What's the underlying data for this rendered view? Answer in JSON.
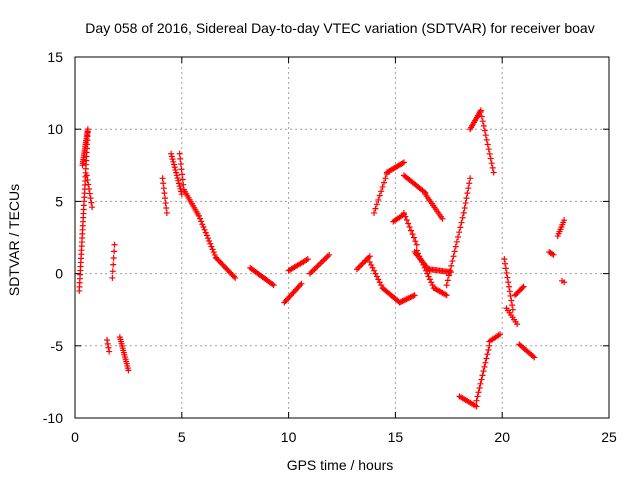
{
  "chart_data": {
    "type": "scatter",
    "title": "Day 058 of 2016, Sidereal Day-to-day VTEC variation (SDTVAR) for receiver boav",
    "xlabel": "GPS time / hours",
    "ylabel": "SDTVAR / TECUs",
    "xlim": [
      0,
      25
    ],
    "ylim": [
      -10,
      15
    ],
    "xticks": [
      0,
      5,
      10,
      15,
      20,
      25
    ],
    "yticks": [
      -10,
      -5,
      0,
      5,
      10,
      15
    ],
    "grid": true,
    "marker": "+",
    "color": "#ff0000",
    "segments": [
      {
        "x0": 0.2,
        "x1": 0.6,
        "y0": -1.2,
        "y1": 9.8,
        "n": 40
      },
      {
        "x0": 0.35,
        "x1": 0.6,
        "y0": 7.5,
        "y1": 10.0,
        "n": 20
      },
      {
        "x0": 0.55,
        "x1": 0.8,
        "y0": 6.8,
        "y1": 4.6,
        "n": 8
      },
      {
        "x0": 1.5,
        "x1": 1.6,
        "y0": -4.6,
        "y1": -5.4,
        "n": 4
      },
      {
        "x0": 1.75,
        "x1": 1.85,
        "y0": -0.3,
        "y1": 2.0,
        "n": 6
      },
      {
        "x0": 2.1,
        "x1": 2.5,
        "y0": -4.4,
        "y1": -6.7,
        "n": 16
      },
      {
        "x0": 4.1,
        "x1": 4.3,
        "y0": 6.6,
        "y1": 4.2,
        "n": 8
      },
      {
        "x0": 4.5,
        "x1": 5.0,
        "y0": 8.3,
        "y1": 5.5,
        "n": 16
      },
      {
        "x0": 4.9,
        "x1": 5.1,
        "y0": 8.3,
        "y1": 5.8,
        "n": 8
      },
      {
        "x0": 5.1,
        "x1": 5.8,
        "y0": 5.8,
        "y1": 4.0,
        "n": 14
      },
      {
        "x0": 5.8,
        "x1": 6.6,
        "y0": 4.0,
        "y1": 1.1,
        "n": 16
      },
      {
        "x0": 6.6,
        "x1": 7.5,
        "y0": 1.1,
        "y1": -0.3,
        "n": 16
      },
      {
        "x0": 8.2,
        "x1": 9.3,
        "y0": 0.4,
        "y1": -0.8,
        "n": 18
      },
      {
        "x0": 9.8,
        "x1": 10.6,
        "y0": -2.0,
        "y1": -0.7,
        "n": 14
      },
      {
        "x0": 10.0,
        "x1": 10.9,
        "y0": 0.2,
        "y1": 1.0,
        "n": 14
      },
      {
        "x0": 11.0,
        "x1": 11.9,
        "y0": 0.0,
        "y1": 1.3,
        "n": 14
      },
      {
        "x0": 13.2,
        "x1": 13.8,
        "y0": 0.3,
        "y1": 1.2,
        "n": 10
      },
      {
        "x0": 13.8,
        "x1": 14.4,
        "y0": 0.8,
        "y1": -1.0,
        "n": 10
      },
      {
        "x0": 14.4,
        "x1": 15.2,
        "y0": -1.0,
        "y1": -2.0,
        "n": 14
      },
      {
        "x0": 15.2,
        "x1": 15.9,
        "y0": -2.0,
        "y1": -1.5,
        "n": 12
      },
      {
        "x0": 15.9,
        "x1": 16.6,
        "y0": 1.5,
        "y1": 0.2,
        "n": 12
      },
      {
        "x0": 16.6,
        "x1": 17.6,
        "y0": 0.3,
        "y1": 0.1,
        "n": 16
      },
      {
        "x0": 14.0,
        "x1": 14.6,
        "y0": 4.2,
        "y1": 6.9,
        "n": 10
      },
      {
        "x0": 14.6,
        "x1": 15.4,
        "y0": 7.0,
        "y1": 7.7,
        "n": 14
      },
      {
        "x0": 15.4,
        "x1": 16.4,
        "y0": 6.8,
        "y1": 5.6,
        "n": 16
      },
      {
        "x0": 16.4,
        "x1": 17.2,
        "y0": 5.5,
        "y1": 3.8,
        "n": 14
      },
      {
        "x0": 14.9,
        "x1": 15.4,
        "y0": 3.6,
        "y1": 4.1,
        "n": 8
      },
      {
        "x0": 15.4,
        "x1": 16.0,
        "y0": 4.2,
        "y1": 2.0,
        "n": 10
      },
      {
        "x0": 16.0,
        "x1": 16.8,
        "y0": 1.6,
        "y1": -1.0,
        "n": 14
      },
      {
        "x0": 16.8,
        "x1": 17.4,
        "y0": -1.0,
        "y1": -1.5,
        "n": 10
      },
      {
        "x0": 17.4,
        "x1": 18.2,
        "y0": -0.8,
        "y1": 4.2,
        "n": 16
      },
      {
        "x0": 18.2,
        "x1": 18.5,
        "y0": 4.2,
        "y1": 6.6,
        "n": 8
      },
      {
        "x0": 18.0,
        "x1": 18.8,
        "y0": -8.5,
        "y1": -9.2,
        "n": 12
      },
      {
        "x0": 18.8,
        "x1": 19.4,
        "y0": -8.8,
        "y1": -5.0,
        "n": 14
      },
      {
        "x0": 19.4,
        "x1": 19.9,
        "y0": -4.7,
        "y1": -4.2,
        "n": 8
      },
      {
        "x0": 18.5,
        "x1": 19.0,
        "y0": 10.0,
        "y1": 11.3,
        "n": 12
      },
      {
        "x0": 19.0,
        "x1": 19.6,
        "y0": 11.2,
        "y1": 7.0,
        "n": 14
      },
      {
        "x0": 20.1,
        "x1": 20.5,
        "y0": 1.0,
        "y1": -2.5,
        "n": 12
      },
      {
        "x0": 20.2,
        "x1": 20.7,
        "y0": -2.4,
        "y1": -3.5,
        "n": 8
      },
      {
        "x0": 20.6,
        "x1": 21.0,
        "y0": -1.5,
        "y1": -0.9,
        "n": 8
      },
      {
        "x0": 20.8,
        "x1": 21.5,
        "y0": -4.9,
        "y1": -5.8,
        "n": 12
      },
      {
        "x0": 22.2,
        "x1": 22.4,
        "y0": 1.5,
        "y1": 1.3,
        "n": 4
      },
      {
        "x0": 22.6,
        "x1": 22.9,
        "y0": 2.6,
        "y1": 3.7,
        "n": 8
      },
      {
        "x0": 22.8,
        "x1": 22.9,
        "y0": -0.5,
        "y1": -0.6,
        "n": 2
      }
    ]
  }
}
